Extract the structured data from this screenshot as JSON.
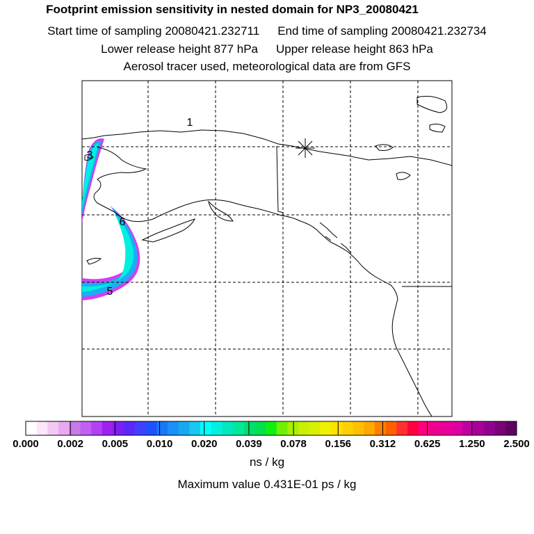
{
  "header": {
    "title": "Footprint emission sensitivity in nested domain for NP3_20080421",
    "start_label": "Start time of sampling 20080421.232711",
    "end_label": "End time of sampling 20080421.232734",
    "lower_label": "Lower release height  877 hPa",
    "upper_label": "Upper release height  863 hPa",
    "tracer_line": "Aerosol tracer used, meteorological data are from GFS"
  },
  "map": {
    "day_labels": [
      "1",
      "3",
      "6",
      "5"
    ],
    "release_marker": "asterisk"
  },
  "colorbar": {
    "tick_labels": [
      "0.000",
      "0.002",
      "0.005",
      "0.010",
      "0.020",
      "0.039",
      "0.078",
      "0.156",
      "0.312",
      "0.625",
      "1.250",
      "2.500"
    ],
    "colors": [
      "#ffffff",
      "#fbe6fb",
      "#f3c8f3",
      "#eaa8ee",
      "#c87ae8",
      "#c060f0",
      "#b440f4",
      "#a020f0",
      "#7a20f0",
      "#5a28f8",
      "#4040ff",
      "#2050ff",
      "#1878f8",
      "#1890f8",
      "#18a8f0",
      "#18c8f0",
      "#00ffff",
      "#00f0e0",
      "#00e8c0",
      "#00e898",
      "#00e070",
      "#00e050",
      "#10f010",
      "#70f000",
      "#a8f000",
      "#c8f000",
      "#d8f000",
      "#f0f000",
      "#ffe000",
      "#ffd000",
      "#ffc000",
      "#ffa800",
      "#ff8000",
      "#ff6000",
      "#ff3030",
      "#ff0040",
      "#ff0080",
      "#f00090",
      "#e80098",
      "#e000a0",
      "#c000a0",
      "#a80098",
      "#900090",
      "#780078",
      "#600060"
    ],
    "units": "ns / kg",
    "max_value": "Maximum value  0.431E-01 ps / kg"
  }
}
